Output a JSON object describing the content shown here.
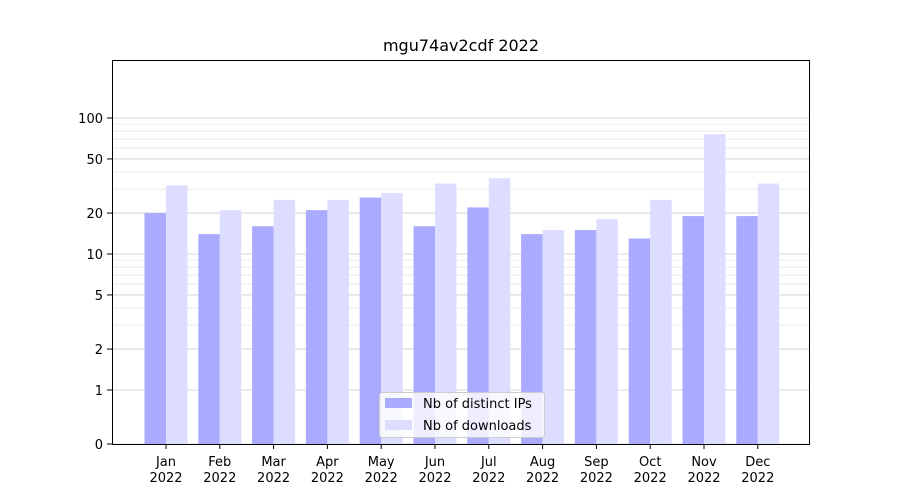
{
  "chart_data": {
    "type": "bar",
    "title": "mgu74av2cdf 2022",
    "xlabel": "",
    "ylabel": "",
    "y_scale": "symlog",
    "y_ticks": [
      0,
      1,
      2,
      5,
      10,
      20,
      50,
      100
    ],
    "y_tick_labels": [
      "0",
      "1",
      "2",
      "5",
      "10",
      "20",
      "50",
      "100"
    ],
    "ylim": [
      0,
      130
    ],
    "grid": true,
    "legend_position": "lower-center",
    "categories": [
      "Jan",
      "Feb",
      "Mar",
      "Apr",
      "May",
      "Jun",
      "Jul",
      "Aug",
      "Sep",
      "Oct",
      "Nov",
      "Dec"
    ],
    "category_years": [
      "2022",
      "2022",
      "2022",
      "2022",
      "2022",
      "2022",
      "2022",
      "2022",
      "2022",
      "2022",
      "2022",
      "2022"
    ],
    "series": [
      {
        "name": "Nb of distinct IPs",
        "color": "#aaaaff",
        "values": [
          20,
          14,
          16,
          21,
          26,
          16,
          22,
          14,
          15,
          13,
          19,
          19
        ]
      },
      {
        "name": "Nb of downloads",
        "color": "#ddddff",
        "values": [
          32,
          21,
          25,
          25,
          28,
          33,
          36,
          15,
          18,
          25,
          76,
          33
        ]
      }
    ]
  }
}
